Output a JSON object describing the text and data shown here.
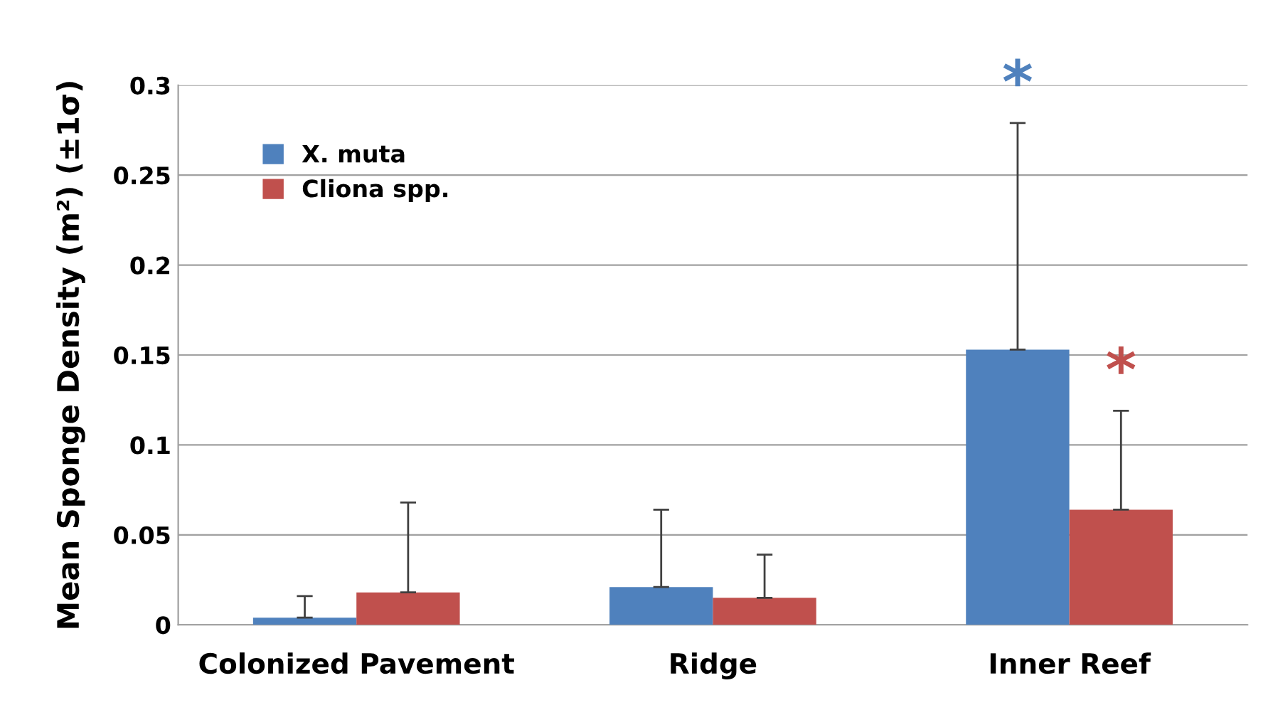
{
  "chart_data": {
    "type": "bar",
    "ylabel": "Mean Sponge Density (m²) (±1σ)",
    "categories": [
      "Colonized Pavement",
      "Ridge",
      "Inner Reef"
    ],
    "series": [
      {
        "name": "X. muta",
        "color": "#4f81bd",
        "values": [
          0.004,
          0.021,
          0.153
        ],
        "errors": [
          [
            0.004,
            0.016
          ],
          [
            0.021,
            0.064
          ],
          [
            0.153,
            0.279
          ]
        ]
      },
      {
        "name": "Cliona spp.",
        "color": "#c0504d",
        "values": [
          0.018,
          0.015,
          0.064
        ],
        "errors": [
          [
            0.018,
            0.068
          ],
          [
            0.015,
            0.039
          ],
          [
            0.064,
            0.119
          ]
        ]
      }
    ],
    "annotations": [
      "*",
      "*"
    ],
    "ylim": [
      0,
      0.3
    ],
    "yticks": [
      0,
      0.05,
      0.1,
      0.15,
      0.2,
      0.25,
      0.3
    ],
    "grid": "y",
    "legend": "top left"
  }
}
